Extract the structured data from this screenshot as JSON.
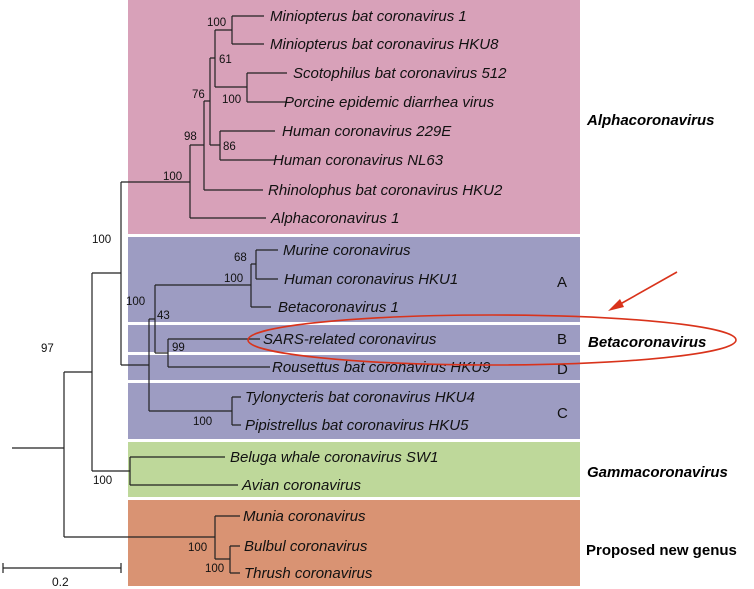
{
  "colors": {
    "alpha_bg": "#d8a1b9",
    "beta_bg": "#9d9cc2",
    "gamma_bg": "#bed89a",
    "proposed_bg": "#d99373",
    "annotation_red": "#d9331b"
  },
  "genera": {
    "alpha": "Alphacoronavirus",
    "beta": "Betacoronavirus",
    "gamma": "Gammacoronavirus",
    "proposed": "Proposed new genus"
  },
  "subgroups": {
    "a": "A",
    "b": "B",
    "c": "C",
    "d": "D"
  },
  "taxa": [
    "Miniopterus bat coronavirus 1",
    "Miniopterus bat coronavirus HKU8",
    "Scotophilus bat coronavirus 512",
    "Porcine epidemic diarrhea virus",
    "Human coronavirus 229E",
    "Human coronavirus NL63",
    "Rhinolophus bat coronavirus HKU2",
    "Alphacoronavirus 1",
    "Murine coronavirus",
    "Human coronavirus HKU1",
    "Betacoronavirus 1",
    "SARS-related coronavirus",
    "Rousettus bat coronavirus HKU9",
    "Tylonycteris bat coronavirus HKU4",
    "Pipistrellus bat coronavirus HKU5",
    "Beluga whale coronavirus SW1",
    "Avian coronavirus",
    "Munia coronavirus",
    "Bulbul coronavirus",
    "Thrush coronavirus"
  ],
  "bootstrap": {
    "mini": "100",
    "scoto_pedv": "100",
    "mini_scoto": "61",
    "hcov_229e_nl63": "86",
    "alpha_inner": "76",
    "alpha_rhino": "98",
    "alpha_root": "100",
    "murine_hku1": "68",
    "beta_a": "100",
    "beta_bd": "99",
    "beta_abd": "43",
    "beta_c": "100",
    "beta_root": "100",
    "alpha_beta": "100",
    "gamma": "100",
    "ingroup": "97",
    "proposed_inner": "100",
    "proposed_root": "100"
  },
  "scale_bar": {
    "label": "0.2"
  }
}
